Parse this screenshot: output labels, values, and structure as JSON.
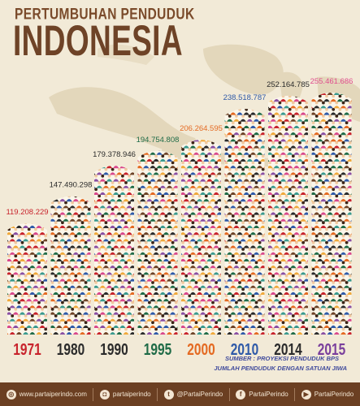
{
  "header": {
    "subtitle": "PERTUMBUHAN PENDUDUK",
    "title": "INDONESIA"
  },
  "chart_data": {
    "type": "bar",
    "title": "PERTUMBUHAN PENDUDUK INDONESIA",
    "categories": [
      "1971",
      "1980",
      "1990",
      "1995",
      "2000",
      "2010",
      "2014",
      "2015"
    ],
    "values": [
      119208229,
      147490298,
      179378946,
      194754808,
      206264595,
      238518787,
      252164785,
      255461686
    ],
    "value_labels": [
      "119.208.229",
      "147.490.298",
      "179.378.946",
      "194.754.808",
      "206.264.595",
      "238.518.787",
      "252.164.785",
      "255.461.686"
    ],
    "xlabel": "",
    "ylabel": "",
    "ylim": [
      0,
      270000000
    ],
    "grid": false,
    "legend": "none"
  },
  "colors": {
    "background": "#f2ead7",
    "map": "#e3d7bb",
    "title": "#6e4327",
    "footer": "#6b3f22",
    "value_label": [
      "#c8232c",
      "#2b2b2b",
      "#2b2b2b",
      "#1f6b47",
      "#e46a22",
      "#2f5aa8",
      "#2b2b2b",
      "#e04d8e"
    ],
    "year_label": [
      "#c8232c",
      "#2b2b2b",
      "#2b2b2b",
      "#1f6b47",
      "#e46a22",
      "#2f5aa8",
      "#2b2b2b",
      "#7a3f9c"
    ],
    "people": [
      "#e46a22",
      "#8a4fa3",
      "#1f6b47",
      "#c8232c",
      "#2f5aa8",
      "#f0a93b",
      "#6e4327",
      "#d9488b",
      "#2b2b2b",
      "#3a9a8e"
    ]
  },
  "source": {
    "line1": "SUMBER : PROYEKSI PENDUDUK BPS",
    "line2": "JUMLAH PENDUDUK DENGAN SATUAN JIWA"
  },
  "footer": {
    "items": [
      {
        "icon": "dribbble-icon",
        "glyph": "◎",
        "label": "www.partaiperindo.com"
      },
      {
        "icon": "instagram-icon",
        "glyph": "◘",
        "label": "partaiperindo"
      },
      {
        "icon": "twitter-icon",
        "glyph": "t",
        "label": "@PartaiPerindo"
      },
      {
        "icon": "facebook-icon",
        "glyph": "f",
        "label": "PartaiPerindo"
      },
      {
        "icon": "youtube-icon",
        "glyph": "▶",
        "label": "PartaiPerindo"
      }
    ]
  }
}
